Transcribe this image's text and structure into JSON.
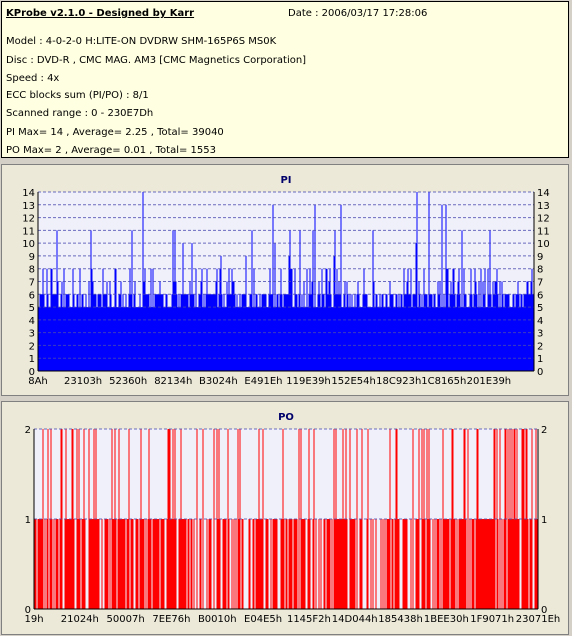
{
  "header": {
    "app_title": "KProbe v2.1.0 - Designed by Karr",
    "date": "Date : 2006/03/17 17:28:06",
    "model": "Model : 4-0-2-0 H:LITE-ON DVDRW SHM-165P6S MS0K",
    "disc": "Disc : DVD-R , CMC MAG. AM3 [CMC Magnetics Corporation]",
    "speed": "Speed : 4x",
    "ecc": "ECC blocks sum (PI/PO) : 8/1",
    "range": "Scanned range : 0 - 230E7Dh",
    "pi_stats": "PI Max= 14 , Average= 2.25 , Total= 39040",
    "po_stats": "PO Max= 2 , Average= 0.01 , Total= 1553"
  },
  "chart_data": [
    {
      "type": "bar",
      "title": "PI",
      "color": "#0000ff",
      "plot_bg": "#f0f0fa",
      "ylim": [
        0,
        14
      ],
      "y_ticks": [
        0,
        1,
        2,
        3,
        4,
        5,
        6,
        7,
        8,
        9,
        10,
        11,
        12,
        13,
        14
      ],
      "x_tick_labels": [
        "8Ah",
        "23103h",
        "52360h",
        "82134h",
        "B3024h",
        "E491Eh",
        "119E39h",
        "152E54h",
        "18C923h",
        "1C8165h",
        "201E39h"
      ],
      "grid": true,
      "baseline": 5,
      "max": 14,
      "average": 2.25
    },
    {
      "type": "bar",
      "title": "PO",
      "color": "#ff0000",
      "plot_bg": "#f0f0fa",
      "ylim": [
        0,
        2
      ],
      "y_ticks": [
        0,
        1,
        2
      ],
      "x_tick_labels": [
        "19h",
        "21024h",
        "50007h",
        "7EE76h",
        "B0010h",
        "E04E5h",
        "1145F2h",
        "14D044h",
        "185438h",
        "1BEE30h",
        "1F9071h",
        "23071Eh"
      ],
      "grid": true,
      "max": 2,
      "average": 0.01
    }
  ]
}
